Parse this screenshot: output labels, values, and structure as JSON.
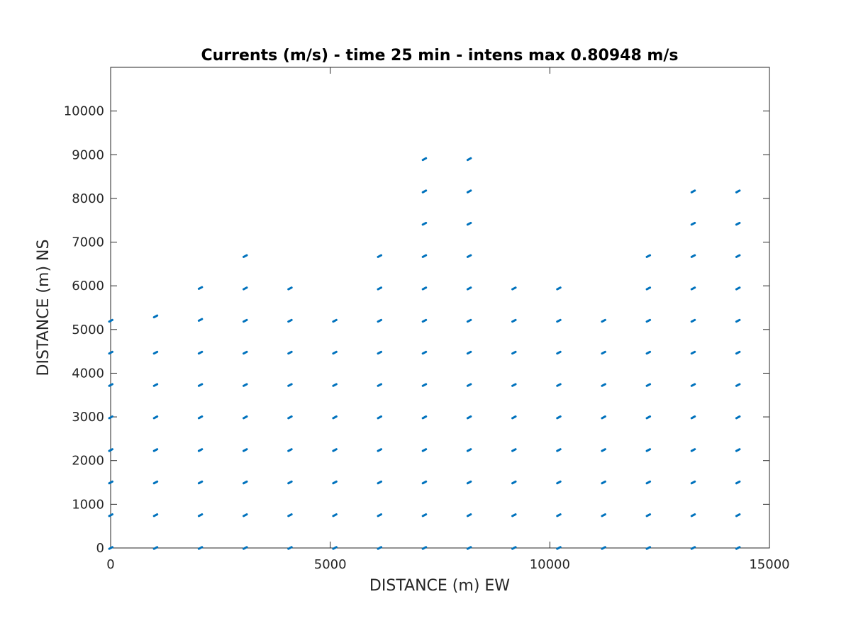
{
  "chart_data": {
    "type": "quiver",
    "title": "Currents (m/s) - time 25 min - intens max 0.80948 m/s",
    "xlabel": "DISTANCE (m) EW",
    "ylabel": "DISTANCE (m) NS",
    "xlim": [
      0,
      15000
    ],
    "ylim": [
      0,
      11000
    ],
    "xticks": [
      0,
      5000,
      10000,
      15000
    ],
    "yticks": [
      0,
      1000,
      2000,
      3000,
      4000,
      5000,
      6000,
      7000,
      8000,
      9000,
      10000
    ],
    "grid": false,
    "color": "#0072BD",
    "columns": [
      {
        "x": 0,
        "y": [
          0,
          750,
          1500,
          2240,
          2990,
          3730,
          4470,
          5200
        ]
      },
      {
        "x": 1020,
        "y": [
          0,
          750,
          1500,
          2240,
          2990,
          3730,
          4470,
          5300
        ]
      },
      {
        "x": 2040,
        "y": [
          0,
          750,
          1500,
          2240,
          2990,
          3730,
          4470,
          5220,
          5950
        ]
      },
      {
        "x": 3060,
        "y": [
          0,
          750,
          1500,
          2240,
          2990,
          3730,
          4470,
          5200,
          5940,
          6680
        ]
      },
      {
        "x": 4080,
        "y": [
          0,
          750,
          1500,
          2240,
          2990,
          3730,
          4470,
          5200,
          5940
        ]
      },
      {
        "x": 5100,
        "y": [
          0,
          750,
          1500,
          2240,
          2990,
          3730,
          4470,
          5200
        ]
      },
      {
        "x": 6120,
        "y": [
          0,
          750,
          1500,
          2240,
          2990,
          3730,
          4470,
          5200,
          5940,
          6680
        ]
      },
      {
        "x": 7140,
        "y": [
          0,
          750,
          1500,
          2240,
          2990,
          3730,
          4470,
          5200,
          5940,
          6680,
          7420,
          8160,
          8900
        ]
      },
      {
        "x": 8160,
        "y": [
          0,
          750,
          1500,
          2240,
          2990,
          3730,
          4470,
          5200,
          5940,
          6680,
          7420,
          8160,
          8900
        ]
      },
      {
        "x": 9180,
        "y": [
          0,
          750,
          1500,
          2240,
          2990,
          3730,
          4470,
          5200,
          5940
        ]
      },
      {
        "x": 10200,
        "y": [
          0,
          750,
          1500,
          2240,
          2990,
          3730,
          4470,
          5200,
          5940
        ]
      },
      {
        "x": 11220,
        "y": [
          0,
          750,
          1500,
          2240,
          2990,
          3730,
          4470,
          5200
        ]
      },
      {
        "x": 12240,
        "y": [
          0,
          750,
          1500,
          2240,
          2990,
          3730,
          4470,
          5200,
          5940,
          6680
        ]
      },
      {
        "x": 13260,
        "y": [
          0,
          750,
          1500,
          2240,
          2990,
          3730,
          4470,
          5200,
          5940,
          6680,
          7420,
          8160
        ]
      },
      {
        "x": 14280,
        "y": [
          0,
          750,
          1500,
          2240,
          2990,
          3730,
          4470,
          5200,
          5940,
          6680,
          7420,
          8160
        ]
      }
    ]
  }
}
